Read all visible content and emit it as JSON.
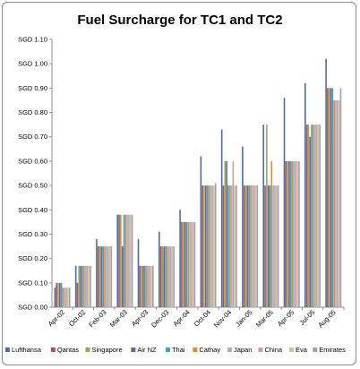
{
  "chart_data": {
    "type": "bar",
    "title": "Fuel Surcharge for TC1 and TC2",
    "xlabel": "",
    "ylabel": "",
    "ylim": [
      0,
      1.1
    ],
    "y_ticks": [
      "SGD 0.00",
      "SGD 0.10",
      "SGD 0.20",
      "SGD 0.30",
      "SGD 0.40",
      "SGD 0.50",
      "SGD 0.60",
      "SGD 0.70",
      "SGD 0.80",
      "SGD 0.90",
      "SGD 1.00",
      "SGD 1.10"
    ],
    "grid": false,
    "legend_position": "bottom",
    "categories": [
      "Apr-02",
      "Oct-02",
      "Feb-03",
      "Mar-03",
      "Apr-03",
      "Dec-03",
      "Apr-04",
      "Oct-04",
      "Nov-04",
      "Jan-05",
      "Mar-05",
      "Apr-05",
      "Jul-05",
      "Aug-05"
    ],
    "series": [
      {
        "name": "Lufthansa",
        "color": "#4a6fae",
        "values": [
          0.08,
          0.17,
          0.28,
          0.38,
          0.28,
          0.31,
          0.4,
          0.62,
          0.73,
          0.66,
          0.75,
          0.86,
          0.92,
          1.02
        ]
      },
      {
        "name": "Qantas",
        "color": "#b5504c",
        "values": [
          0.1,
          0.1,
          0.25,
          0.38,
          0.17,
          0.25,
          0.35,
          0.5,
          0.5,
          0.5,
          0.5,
          0.6,
          0.75,
          0.9
        ]
      },
      {
        "name": "Singapore",
        "color": "#8faf4b",
        "values": [
          0.1,
          0.17,
          0.25,
          0.38,
          0.17,
          0.25,
          0.35,
          0.5,
          0.6,
          0.5,
          0.75,
          0.6,
          0.75,
          0.9
        ]
      },
      {
        "name": "Air NZ",
        "color": "#7a5c99",
        "values": [
          0.1,
          0.17,
          0.25,
          0.25,
          0.17,
          0.25,
          0.35,
          0.5,
          0.6,
          0.5,
          0.5,
          0.6,
          0.7,
          0.9
        ]
      },
      {
        "name": "Thai",
        "color": "#3fa3bf",
        "values": [
          0.1,
          0.17,
          0.25,
          0.38,
          0.17,
          0.25,
          0.35,
          0.5,
          0.5,
          0.5,
          0.5,
          0.6,
          0.75,
          0.9
        ]
      },
      {
        "name": "Cathay",
        "color": "#e0893a",
        "values": [
          0.08,
          0.17,
          0.25,
          0.38,
          0.17,
          0.25,
          0.35,
          0.5,
          0.5,
          0.5,
          0.6,
          0.6,
          0.75,
          0.85
        ]
      },
      {
        "name": "Japan",
        "color": "#9db3d6",
        "values": [
          0.08,
          0.17,
          0.25,
          0.38,
          0.17,
          0.25,
          0.35,
          0.5,
          0.5,
          0.5,
          0.5,
          0.6,
          0.75,
          0.85
        ]
      },
      {
        "name": "China",
        "color": "#d49a98",
        "values": [
          0.08,
          0.17,
          0.25,
          0.38,
          0.17,
          0.25,
          0.35,
          0.5,
          0.6,
          0.5,
          0.5,
          0.6,
          0.75,
          0.85
        ]
      },
      {
        "name": "Eva",
        "color": "#bccd98",
        "values": [
          0.08,
          0.17,
          0.25,
          0.38,
          0.17,
          0.25,
          0.35,
          0.5,
          0.5,
          0.5,
          0.5,
          0.6,
          0.75,
          0.85
        ]
      },
      {
        "name": "Emirates",
        "color": "#a898c4",
        "values": [
          0.08,
          0.17,
          0.25,
          0.38,
          0.17,
          0.25,
          0.35,
          0.51,
          0.5,
          0.5,
          0.5,
          0.6,
          0.75,
          0.9
        ]
      }
    ]
  }
}
